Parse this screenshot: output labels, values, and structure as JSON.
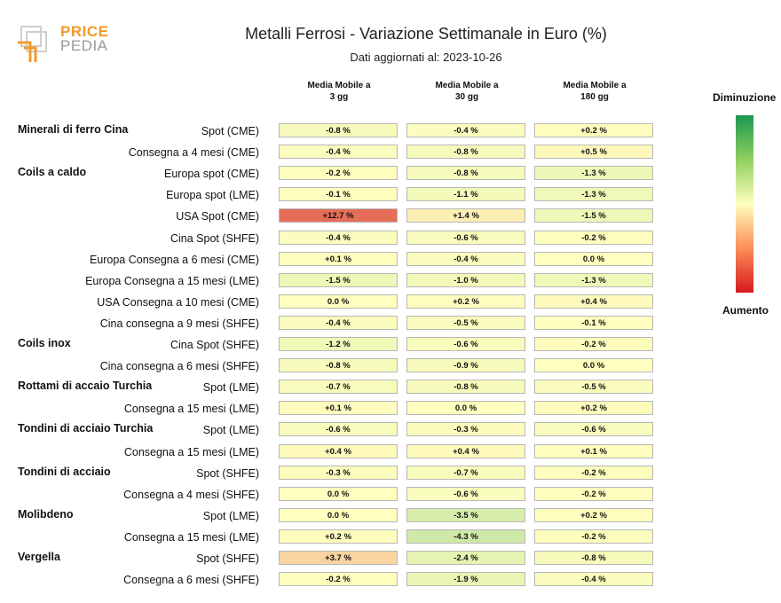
{
  "logo": {
    "word_top": "PRICE",
    "word_bottom": "PEDIA"
  },
  "chart_data": {
    "type": "table",
    "title": "Metalli Ferrosi - Variazione Settimanale in Euro (%)",
    "subtitle": "Dati aggiornati al: 2023-10-26",
    "columns": [
      {
        "line1": "Media Mobile a",
        "line2": "3 gg"
      },
      {
        "line1": "Media Mobile a",
        "line2": "30 gg"
      },
      {
        "line1": "Media Mobile a",
        "line2": "180 gg"
      }
    ],
    "legend": {
      "top_label": "Diminuzione",
      "bottom_label": "Aumento"
    },
    "colors": {
      "decrease": "#1a9850",
      "neutral": "#ffffbf",
      "increase": "#d7191c"
    },
    "rows": [
      {
        "group": "Minerali di ferro Cina",
        "label": "Spot (CME)",
        "values": [
          -0.8,
          -0.4,
          0.2
        ],
        "text": [
          "-0.8 %",
          "-0.4 %",
          "+0.2 %"
        ]
      },
      {
        "group": "",
        "label": "Consegna a 4 mesi (CME)",
        "values": [
          -0.4,
          -0.8,
          0.5
        ],
        "text": [
          "-0.4 %",
          "-0.8 %",
          "+0.5 %"
        ]
      },
      {
        "group": "Coils a caldo",
        "label": "Europa spot (CME)",
        "values": [
          -0.2,
          -0.8,
          -1.3
        ],
        "text": [
          "-0.2 %",
          "-0.8 %",
          "-1.3 %"
        ]
      },
      {
        "group": "",
        "label": "Europa spot (LME)",
        "values": [
          -0.1,
          -1.1,
          -1.3
        ],
        "text": [
          "-0.1 %",
          "-1.1 %",
          "-1.3 %"
        ]
      },
      {
        "group": "",
        "label": "USA Spot (CME)",
        "values": [
          12.7,
          1.4,
          -1.5
        ],
        "text": [
          "+12.7 %",
          "+1.4 %",
          "-1.5 %"
        ]
      },
      {
        "group": "",
        "label": "Cina Spot (SHFE)",
        "values": [
          -0.4,
          -0.6,
          -0.2
        ],
        "text": [
          "-0.4 %",
          "-0.6 %",
          "-0.2 %"
        ]
      },
      {
        "group": "",
        "label": "Europa Consegna a 6 mesi (CME)",
        "values": [
          0.1,
          -0.4,
          0.0
        ],
        "text": [
          "+0.1 %",
          "-0.4 %",
          "0.0 %"
        ]
      },
      {
        "group": "",
        "label": "Europa Consegna a 15 mesi (LME)",
        "values": [
          -1.5,
          -1.0,
          -1.3
        ],
        "text": [
          "-1.5 %",
          "-1.0 %",
          "-1.3 %"
        ]
      },
      {
        "group": "",
        "label": "USA Consegna a 10 mesi (CME)",
        "values": [
          0.0,
          0.2,
          0.4
        ],
        "text": [
          "0.0 %",
          "+0.2 %",
          "+0.4 %"
        ]
      },
      {
        "group": "",
        "label": "Cina consegna a 9 mesi (SHFE)",
        "values": [
          -0.4,
          -0.5,
          -0.1
        ],
        "text": [
          "-0.4 %",
          "-0.5 %",
          "-0.1 %"
        ]
      },
      {
        "group": "Coils inox",
        "label": "Cina Spot (SHFE)",
        "values": [
          -1.2,
          -0.6,
          -0.2
        ],
        "text": [
          "-1.2 %",
          "-0.6 %",
          "-0.2 %"
        ]
      },
      {
        "group": "",
        "label": "Cina consegna a 6 mesi (SHFE)",
        "values": [
          -0.8,
          -0.9,
          0.0
        ],
        "text": [
          "-0.8 %",
          "-0.9 %",
          "0.0 %"
        ]
      },
      {
        "group": "Rottami di accaio Turchia",
        "label": "Spot (LME)",
        "values": [
          -0.7,
          -0.8,
          -0.5
        ],
        "text": [
          "-0.7 %",
          "-0.8 %",
          "-0.5 %"
        ]
      },
      {
        "group": "",
        "label": "Consegna a 15 mesi (LME)",
        "values": [
          0.1,
          0.0,
          0.2
        ],
        "text": [
          "+0.1 %",
          "0.0 %",
          "+0.2 %"
        ]
      },
      {
        "group": "Tondini di acciaio Turchia",
        "label": "Spot (LME)",
        "values": [
          -0.6,
          -0.3,
          -0.6
        ],
        "text": [
          "-0.6 %",
          "-0.3 %",
          "-0.6 %"
        ]
      },
      {
        "group": "",
        "label": "Consegna a 15 mesi (LME)",
        "values": [
          0.4,
          0.4,
          0.1
        ],
        "text": [
          "+0.4 %",
          "+0.4 %",
          "+0.1 %"
        ]
      },
      {
        "group": "Tondini di acciaio",
        "label": "Spot (SHFE)",
        "values": [
          -0.3,
          -0.7,
          -0.2
        ],
        "text": [
          "-0.3 %",
          "-0.7 %",
          "-0.2 %"
        ]
      },
      {
        "group": "",
        "label": "Consegna a 4 mesi (SHFE)",
        "values": [
          0.0,
          -0.6,
          -0.2
        ],
        "text": [
          "0.0 %",
          "-0.6 %",
          "-0.2 %"
        ]
      },
      {
        "group": "Molibdeno",
        "label": "Spot (LME)",
        "values": [
          0.0,
          -3.5,
          0.2
        ],
        "text": [
          "0.0 %",
          "-3.5 %",
          "+0.2 %"
        ]
      },
      {
        "group": "",
        "label": "Consegna a 15 mesi (LME)",
        "values": [
          0.2,
          -4.3,
          -0.2
        ],
        "text": [
          "+0.2 %",
          "-4.3 %",
          "-0.2 %"
        ]
      },
      {
        "group": "Vergella",
        "label": "Spot (SHFE)",
        "values": [
          3.7,
          -2.4,
          -0.8
        ],
        "text": [
          "+3.7 %",
          "-2.4 %",
          "-0.8 %"
        ]
      },
      {
        "group": "",
        "label": "Consegna a 6 mesi (SHFE)",
        "values": [
          -0.2,
          -1.9,
          -0.4
        ],
        "text": [
          "-0.2 %",
          "-1.9 %",
          "-0.4 %"
        ]
      }
    ]
  }
}
